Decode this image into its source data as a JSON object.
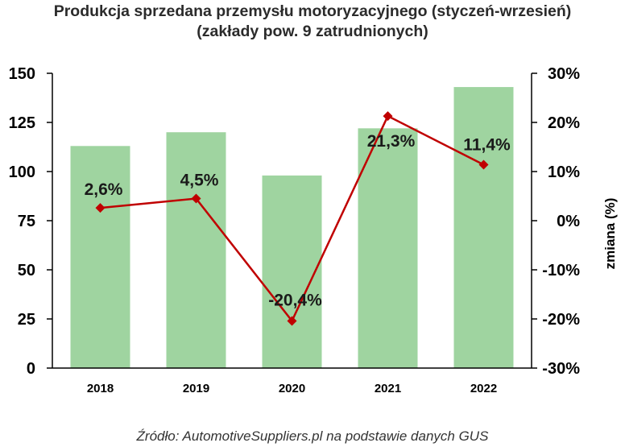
{
  "chart_data": {
    "type": "bar",
    "title_lines": [
      "Produkcja sprzedana przemysłu motoryzacyjnego (styczeń-wrzesień)",
      "(zakłady pow. 9 zatrudnionych)"
    ],
    "categories": [
      "2018",
      "2019",
      "2020",
      "2021",
      "2022"
    ],
    "bar_values": [
      113,
      120,
      98,
      122,
      143
    ],
    "bar_color": "#9fd4a0",
    "left_axis": {
      "ylim": [
        0,
        150
      ],
      "ticks": [
        "150",
        "125",
        "100",
        "75",
        "50",
        "25",
        "0"
      ],
      "tick_values": [
        150,
        125,
        100,
        75,
        50,
        25,
        0
      ]
    },
    "line_values": [
      2.6,
      4.5,
      -20.4,
      21.3,
      11.4
    ],
    "line_labels": [
      "2,6%",
      "4,5%",
      "-20,4%",
      "21,3%",
      "11,4%"
    ],
    "line_color": "#c00000",
    "right_axis": {
      "ylim": [
        -30,
        30
      ],
      "ticks": [
        "30%",
        "20%",
        "10%",
        "0%",
        "-10%",
        "-20%",
        "-30%"
      ],
      "tick_values": [
        30,
        20,
        10,
        0,
        -10,
        -20,
        -30
      ],
      "label": "zmiana (%)"
    },
    "grid": false,
    "legend": "none"
  },
  "source": "Źródło: AutomotiveSuppliers.pl na podstawie danych GUS"
}
